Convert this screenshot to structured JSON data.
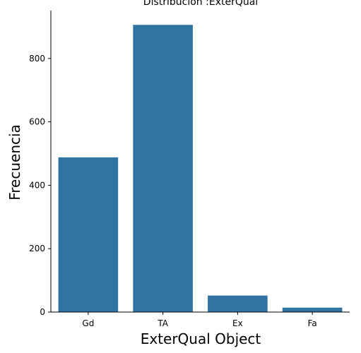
{
  "chart_data": {
    "type": "bar",
    "title": "Distribución :ExterQual",
    "xlabel": "ExterQual Object",
    "ylabel": "Frecuencia",
    "categories": [
      "Gd",
      "TA",
      "Ex",
      "Fa"
    ],
    "values": [
      488,
      906,
      52,
      14
    ],
    "ylim": [
      0,
      951
    ],
    "yticks": [
      0,
      200,
      400,
      600,
      800
    ],
    "grid": false,
    "bar_color": "#3274a1"
  }
}
